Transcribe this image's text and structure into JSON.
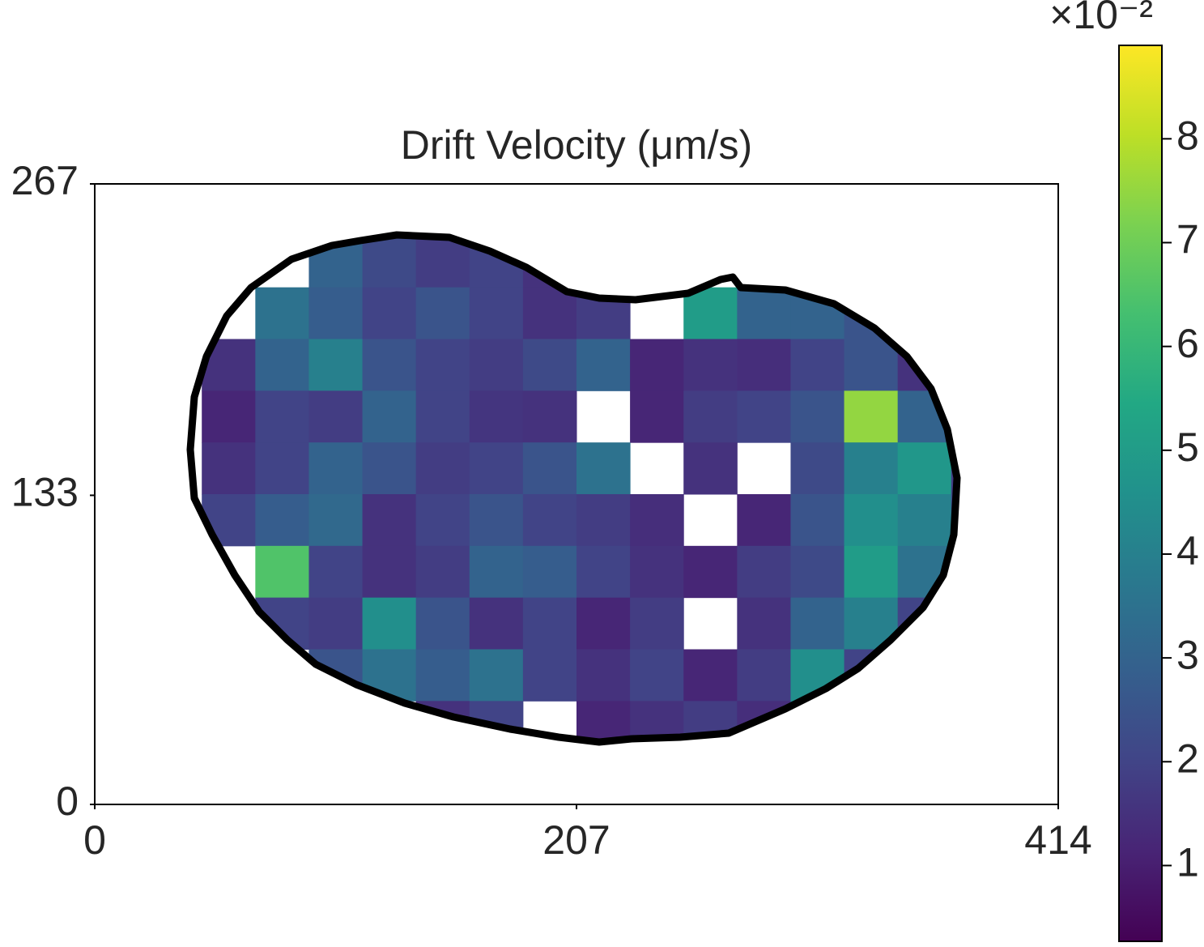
{
  "chart_data": {
    "type": "heatmap",
    "title": "Drift Velocity (μm/s)",
    "xlim": [
      0,
      414
    ],
    "ylim": [
      0,
      267
    ],
    "xticks": [
      0,
      207,
      414
    ],
    "yticks": [
      0,
      133,
      267
    ],
    "colormap": "viridis",
    "zlim": [
      0.0027,
      0.089
    ],
    "colorbar_ticks": [
      {
        "value": 0.01,
        "label": "1"
      },
      {
        "value": 0.02,
        "label": "2"
      },
      {
        "value": 0.03,
        "label": "3"
      },
      {
        "value": 0.04,
        "label": "4"
      },
      {
        "value": 0.05,
        "label": "5"
      },
      {
        "value": 0.06,
        "label": "6"
      },
      {
        "value": 0.07,
        "label": "7"
      },
      {
        "value": 0.08,
        "label": "8"
      }
    ],
    "colorbar_offset_label": "×10⁻²",
    "z": [
      [
        null,
        null,
        null,
        null,
        null,
        null,
        null,
        null,
        null,
        null,
        null,
        null,
        null,
        null,
        null,
        null,
        null,
        null
      ],
      [
        null,
        null,
        null,
        null,
        0.03,
        0.022,
        0.018,
        0.02,
        0.015,
        null,
        null,
        null,
        null,
        null,
        null,
        null,
        null,
        null
      ],
      [
        null,
        null,
        null,
        0.035,
        0.028,
        0.02,
        0.025,
        0.02,
        0.015,
        0.018,
        null,
        0.05,
        0.03,
        0.03,
        0.025,
        null,
        null,
        null
      ],
      [
        null,
        null,
        0.015,
        0.03,
        0.04,
        0.025,
        0.02,
        0.018,
        0.022,
        0.03,
        0.012,
        0.015,
        0.014,
        0.02,
        0.025,
        0.015,
        null,
        null
      ],
      [
        null,
        null,
        0.012,
        0.02,
        0.018,
        0.03,
        0.02,
        0.016,
        0.015,
        null,
        0.012,
        0.018,
        0.02,
        0.025,
        0.075,
        0.03,
        null,
        null
      ],
      [
        null,
        null,
        0.015,
        0.02,
        0.03,
        0.025,
        0.018,
        0.02,
        0.025,
        0.035,
        null,
        0.015,
        null,
        0.022,
        0.04,
        0.048,
        0.018,
        null
      ],
      [
        null,
        null,
        0.02,
        0.028,
        0.032,
        0.015,
        0.02,
        0.025,
        0.02,
        0.018,
        0.014,
        null,
        0.012,
        0.025,
        0.045,
        0.04,
        0.02,
        null
      ],
      [
        null,
        null,
        null,
        0.065,
        0.02,
        0.015,
        0.018,
        0.03,
        0.028,
        0.02,
        0.015,
        0.012,
        0.018,
        0.022,
        0.05,
        0.035,
        0.015,
        null
      ],
      [
        null,
        null,
        null,
        0.02,
        0.018,
        0.045,
        0.025,
        0.015,
        0.02,
        0.012,
        0.018,
        null,
        0.015,
        0.03,
        0.04,
        0.02,
        null,
        null
      ],
      [
        null,
        null,
        null,
        null,
        0.025,
        0.035,
        0.028,
        0.035,
        0.02,
        0.015,
        0.02,
        0.012,
        0.018,
        0.045,
        0.02,
        0.015,
        null,
        null
      ],
      [
        null,
        null,
        null,
        null,
        null,
        null,
        0.015,
        0.02,
        null,
        0.012,
        0.015,
        0.018,
        0.014,
        0.04,
        0.018,
        null,
        null,
        null
      ],
      [
        null,
        null,
        null,
        null,
        null,
        null,
        null,
        null,
        null,
        null,
        null,
        null,
        null,
        null,
        null,
        null,
        null,
        null
      ]
    ]
  }
}
